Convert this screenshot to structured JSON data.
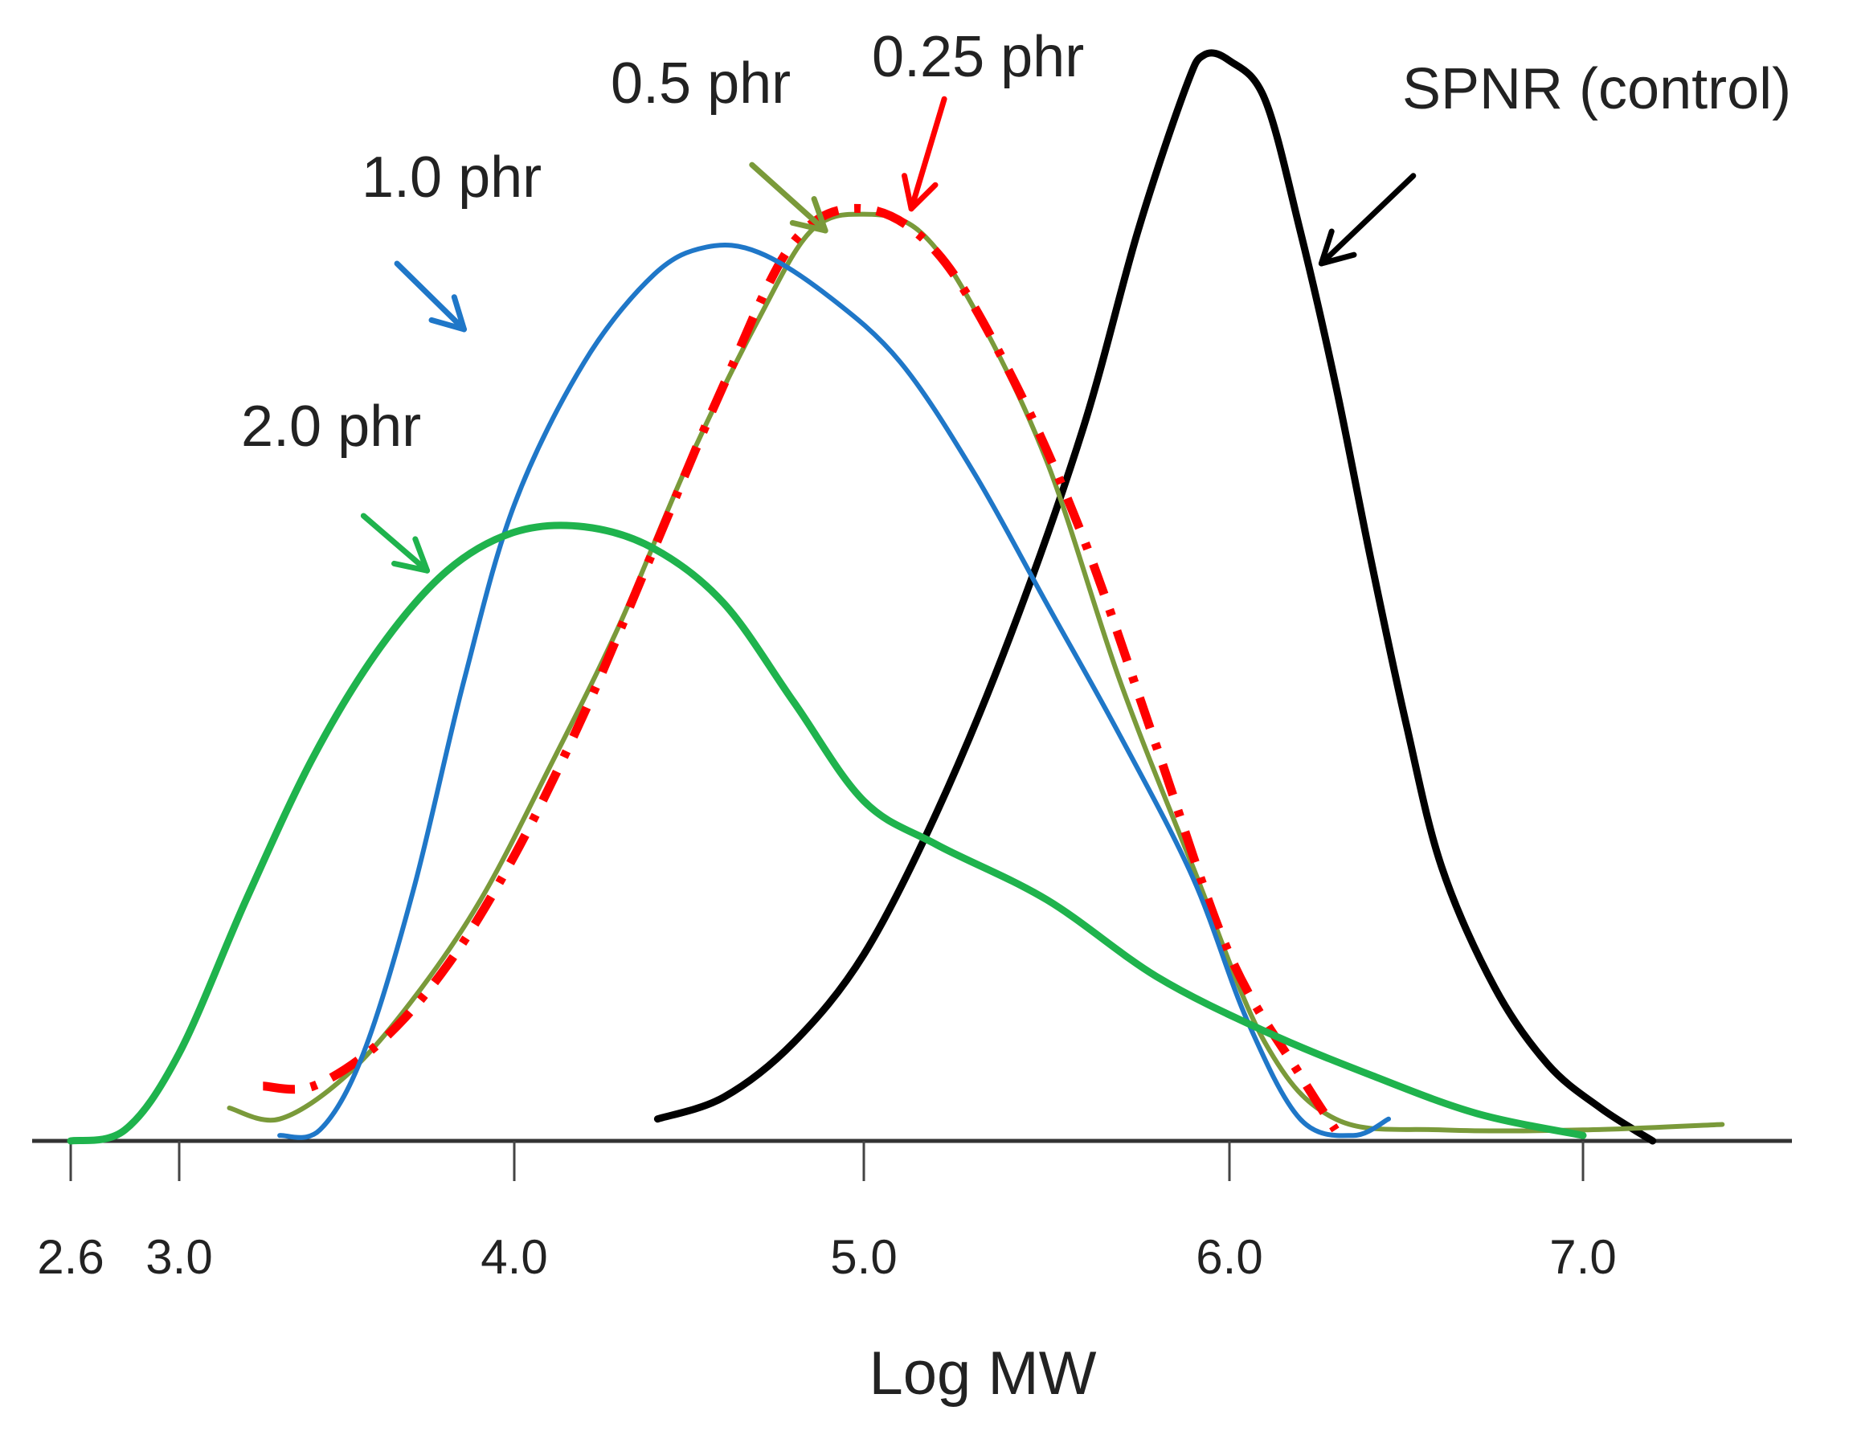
{
  "chart_data": {
    "type": "line",
    "title": "",
    "xlabel": "Log MW",
    "ylabel": "",
    "xlim": [
      2.6,
      7.6
    ],
    "ylim": [
      0,
      1.0
    ],
    "grid": false,
    "x_ticks": [
      {
        "value": 2.6,
        "label": "2.6"
      },
      {
        "value": 3.0,
        "label": "3.0"
      },
      {
        "value": 4.0,
        "label": "4.0"
      },
      {
        "value": 5.0,
        "label": "5.0"
      },
      {
        "value": 6.0,
        "label": "6.0"
      },
      {
        "value": 7.0,
        "label": "7.0"
      }
    ],
    "series": [
      {
        "name": "SPNR (control)",
        "label": "SPNR (control)",
        "color": "#000000",
        "style": "solid",
        "arrow_tail": [
          6.52,
          0.88
        ],
        "arrow_head": [
          6.26,
          0.8
        ],
        "points": [
          [
            4.41,
            0.02
          ],
          [
            4.6,
            0.04
          ],
          [
            4.8,
            0.09
          ],
          [
            5.0,
            0.17
          ],
          [
            5.2,
            0.3
          ],
          [
            5.4,
            0.46
          ],
          [
            5.6,
            0.65
          ],
          [
            5.75,
            0.83
          ],
          [
            5.88,
            0.96
          ],
          [
            5.93,
            0.99
          ],
          [
            6.0,
            0.985
          ],
          [
            6.1,
            0.95
          ],
          [
            6.2,
            0.83
          ],
          [
            6.3,
            0.69
          ],
          [
            6.4,
            0.53
          ],
          [
            6.5,
            0.38
          ],
          [
            6.6,
            0.25
          ],
          [
            6.75,
            0.14
          ],
          [
            6.9,
            0.07
          ],
          [
            7.05,
            0.03
          ],
          [
            7.2,
            0.0
          ]
        ]
      },
      {
        "name": "0.25 phr",
        "label": "0.25 phr",
        "color": "#ff0000",
        "style": "dashdot",
        "arrow_tail": [
          5.22,
          0.95
        ],
        "arrow_head": [
          5.13,
          0.85
        ],
        "points": [
          [
            3.25,
            0.05
          ],
          [
            3.4,
            0.05
          ],
          [
            3.6,
            0.09
          ],
          [
            3.8,
            0.16
          ],
          [
            4.0,
            0.26
          ],
          [
            4.2,
            0.39
          ],
          [
            4.4,
            0.54
          ],
          [
            4.6,
            0.69
          ],
          [
            4.8,
            0.82
          ],
          [
            5.0,
            0.85
          ],
          [
            5.2,
            0.81
          ],
          [
            5.4,
            0.7
          ],
          [
            5.6,
            0.55
          ],
          [
            5.8,
            0.36
          ],
          [
            6.0,
            0.17
          ],
          [
            6.2,
            0.06
          ],
          [
            6.3,
            0.01
          ]
        ]
      },
      {
        "name": "0.5 phr",
        "label": "0.5 phr",
        "color": "#7a9a3a",
        "style": "solid",
        "arrow_tail": [
          4.68,
          0.89
        ],
        "arrow_head": [
          4.89,
          0.83
        ],
        "points": [
          [
            3.15,
            0.03
          ],
          [
            3.3,
            0.02
          ],
          [
            3.5,
            0.06
          ],
          [
            3.7,
            0.13
          ],
          [
            3.9,
            0.22
          ],
          [
            4.1,
            0.34
          ],
          [
            4.3,
            0.47
          ],
          [
            4.5,
            0.62
          ],
          [
            4.7,
            0.75
          ],
          [
            4.85,
            0.83
          ],
          [
            5.0,
            0.845
          ],
          [
            5.15,
            0.83
          ],
          [
            5.3,
            0.76
          ],
          [
            5.5,
            0.62
          ],
          [
            5.7,
            0.42
          ],
          [
            5.9,
            0.25
          ],
          [
            6.1,
            0.09
          ],
          [
            6.3,
            0.02
          ],
          [
            6.6,
            0.01
          ],
          [
            7.0,
            0.01
          ],
          [
            7.4,
            0.015
          ]
        ]
      },
      {
        "name": "1.0 phr",
        "label": "1.0 phr",
        "color": "#1f77c8",
        "style": "solid",
        "arrow_tail": [
          3.65,
          0.8
        ],
        "arrow_head": [
          3.85,
          0.74
        ],
        "points": [
          [
            3.3,
            0.005
          ],
          [
            3.42,
            0.01
          ],
          [
            3.55,
            0.08
          ],
          [
            3.7,
            0.23
          ],
          [
            3.85,
            0.42
          ],
          [
            4.0,
            0.58
          ],
          [
            4.2,
            0.71
          ],
          [
            4.4,
            0.79
          ],
          [
            4.55,
            0.815
          ],
          [
            4.7,
            0.81
          ],
          [
            4.9,
            0.77
          ],
          [
            5.1,
            0.71
          ],
          [
            5.3,
            0.61
          ],
          [
            5.5,
            0.49
          ],
          [
            5.7,
            0.37
          ],
          [
            5.9,
            0.24
          ],
          [
            6.05,
            0.11
          ],
          [
            6.2,
            0.02
          ],
          [
            6.35,
            0.005
          ],
          [
            6.45,
            0.02
          ]
        ]
      },
      {
        "name": "2.0 phr",
        "label": "2.0 phr",
        "color": "#1fb34d",
        "style": "solid",
        "arrow_tail": [
          3.55,
          0.57
        ],
        "arrow_head": [
          3.74,
          0.52
        ],
        "points": [
          [
            2.6,
            0.0
          ],
          [
            2.8,
            0.01
          ],
          [
            3.0,
            0.08
          ],
          [
            3.2,
            0.22
          ],
          [
            3.4,
            0.35
          ],
          [
            3.6,
            0.45
          ],
          [
            3.8,
            0.52
          ],
          [
            4.0,
            0.555
          ],
          [
            4.2,
            0.56
          ],
          [
            4.4,
            0.54
          ],
          [
            4.6,
            0.49
          ],
          [
            4.8,
            0.4
          ],
          [
            5.0,
            0.31
          ],
          [
            5.2,
            0.27
          ],
          [
            5.5,
            0.22
          ],
          [
            5.8,
            0.15
          ],
          [
            6.1,
            0.1
          ],
          [
            6.4,
            0.06
          ],
          [
            6.7,
            0.025
          ],
          [
            7.0,
            0.005
          ]
        ]
      }
    ]
  }
}
